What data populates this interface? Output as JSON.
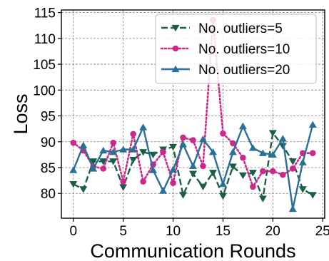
{
  "chart_data": {
    "type": "line",
    "title": "",
    "xlabel": "Communication Rounds",
    "ylabel": "Loss",
    "xlim": [
      -1.2,
      25.2
    ],
    "ylim": [
      75.2,
      115.5
    ],
    "xticks": [
      0,
      5,
      10,
      15,
      20,
      25
    ],
    "xtick_labels": [
      "0",
      "5",
      "10",
      "15",
      "20",
      "25"
    ],
    "yticks": [
      80,
      85,
      90,
      95,
      100,
      105,
      110,
      115
    ],
    "ytick_labels": [
      "80",
      "85",
      "90",
      "95",
      "100",
      "105",
      "110",
      "115"
    ],
    "grid": true,
    "legend_position": "top-right",
    "x": [
      0,
      1,
      2,
      3,
      4,
      5,
      6,
      7,
      8,
      9,
      10,
      11,
      12,
      13,
      14,
      15,
      16,
      17,
      18,
      19,
      20,
      21,
      22,
      23,
      24
    ],
    "series": [
      {
        "name": "No. outliers=5",
        "color": "#1a5e4a",
        "linestyle": "dashed",
        "marker": "triangle-down",
        "values": [
          81.8,
          80.8,
          86.2,
          86.2,
          86.2,
          81.2,
          86.5,
          88.0,
          87.5,
          88.5,
          89.0,
          79.7,
          83.8,
          81.3,
          84.0,
          79.5,
          85.2,
          83.5,
          84.0,
          79.0,
          91.7,
          89.2,
          86.2,
          80.8,
          79.7
        ]
      },
      {
        "name": "No. outliers=10",
        "color": "#cc2a8a",
        "linestyle": "dotted",
        "marker": "circle",
        "values": [
          89.8,
          88.3,
          85.2,
          84.8,
          89.8,
          82.3,
          91.5,
          82.3,
          85.6,
          88.0,
          82.0,
          90.8,
          90.3,
          85.3,
          113.6,
          91.6,
          89.7,
          86.9,
          81.3,
          84.3,
          84.3,
          83.6,
          84.8,
          87.8,
          87.8
        ]
      },
      {
        "name": "No. outliers=20",
        "color": "#2a6f96",
        "linestyle": "solid",
        "marker": "triangle-up",
        "values": [
          84.5,
          89.3,
          84.8,
          88.3,
          88.0,
          88.5,
          88.5,
          92.8,
          84.5,
          80.5,
          84.6,
          89.5,
          85.3,
          90.5,
          88.0,
          81.8,
          88.0,
          93.0,
          88.8,
          87.8,
          87.5,
          90.6,
          77.0,
          86.0,
          93.3
        ]
      }
    ]
  }
}
